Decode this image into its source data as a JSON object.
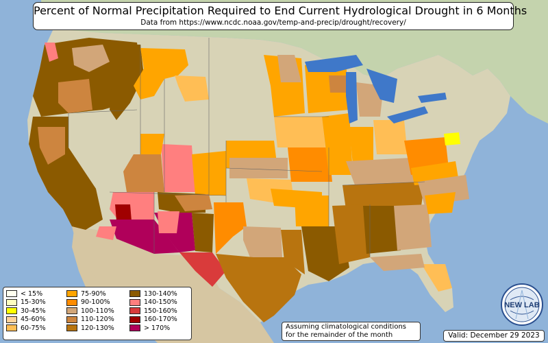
{
  "title": "Percent of Normal Precipitation Required to End Current Hydrological Drought in 6 Months",
  "subtitle": "Data from https://www.ncdc.noaa.gov/temp-and-precip/drought/recovery/",
  "legend": {
    "items": [
      {
        "label": "< 15%",
        "color": "#fffff0"
      },
      {
        "label": "15-30%",
        "color": "#ffffc0"
      },
      {
        "label": "30-45%",
        "color": "#ffff00"
      },
      {
        "label": "45-60%",
        "color": "#ffd39b"
      },
      {
        "label": "60-75%",
        "color": "#ffbe55"
      },
      {
        "label": "75-90%",
        "color": "#ffa500"
      },
      {
        "label": "90-100%",
        "color": "#ff8c00"
      },
      {
        "label": "100-110%",
        "color": "#d2a679"
      },
      {
        "label": "110-120%",
        "color": "#cd853f"
      },
      {
        "label": "120-130%",
        "color": "#b8740f"
      },
      {
        "label": "130-140%",
        "color": "#8b5a00"
      },
      {
        "label": "140-150%",
        "color": "#ff7f7f"
      },
      {
        "label": "150-160%",
        "color": "#d93b3b"
      },
      {
        "label": "160-170%",
        "color": "#a00000"
      },
      {
        "label": "> 170%",
        "color": "#b0005a"
      }
    ]
  },
  "note": {
    "line1": "Assuming climatological conditions",
    "line2": "for the remainder of the month"
  },
  "valid": "Valid: December 29 2023",
  "logo": {
    "text": "NEW LAB",
    "icon": "newlab-logo-icon"
  },
  "colors": {
    "ocean": "#8fb3d9",
    "land_canada": "#c9d6b4",
    "land_mexico": "#d8c9a8",
    "land_us_base": "#dcd8c0",
    "lakes": "#3f78c9",
    "state_border": "#666666"
  }
}
